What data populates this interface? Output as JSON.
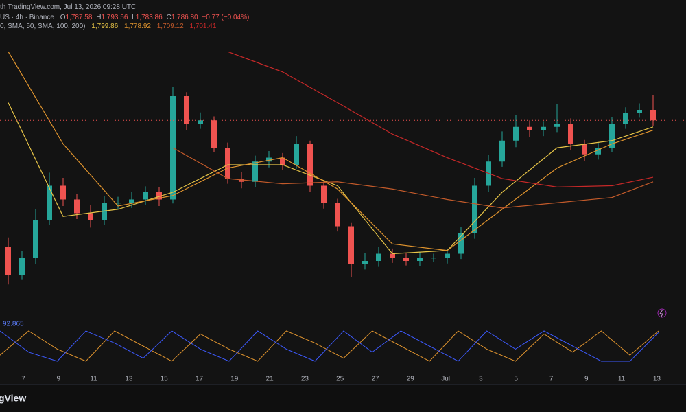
{
  "chart_data": {
    "type": "candlestick",
    "header": {
      "source": "th TradingView.com, Jul 13, 2026 09:28 UTC",
      "symbol": "US · 4h · Binance",
      "o_label": "O",
      "o": "1,787.58",
      "h_label": "H",
      "h": "1,793.56",
      "l_label": "L",
      "l": "1,783.86",
      "c_label": "C",
      "c": "1,786.80",
      "change": "−0.77 (−0.04%)",
      "ma_legend": "0, SMA, 50, SMA, 100, 200)",
      "ma_values": [
        "1,799.86",
        "1,778.92",
        "1,709.12",
        "1,701.41"
      ]
    },
    "logo": "gView",
    "up_color": "#26a69a",
    "down_color": "#ef5350",
    "ylim": [
      1494,
      1977
    ],
    "open": [
      1600,
      1557,
      1583,
      1641,
      1693,
      1672,
      1651,
      1641,
      1667,
      1667,
      1672,
      1683,
      1672,
      1830,
      1788,
      1793,
      1751,
      1704,
      1699,
      1730,
      1736,
      1725,
      1757,
      1693,
      1667,
      1631,
      1573,
      1578,
      1589,
      1583,
      1578,
      1583,
      1583,
      1589,
      1620,
      1693,
      1730,
      1762,
      1783,
      1778,
      1783,
      1788,
      1757,
      1741,
      1751,
      1788,
      1804,
      1809
    ],
    "high": [
      1614,
      1593,
      1657,
      1713,
      1705,
      1680,
      1663,
      1677,
      1676,
      1683,
      1692,
      1691,
      1844,
      1836,
      1805,
      1799,
      1759,
      1714,
      1739,
      1746,
      1743,
      1769,
      1762,
      1701,
      1673,
      1636,
      1590,
      1599,
      1597,
      1590,
      1592,
      1589,
      1597,
      1630,
      1705,
      1740,
      1776,
      1801,
      1793,
      1792,
      1818,
      1796,
      1763,
      1759,
      1798,
      1813,
      1819,
      1831
    ],
    "low": [
      1542,
      1549,
      1573,
      1633,
      1662,
      1642,
      1629,
      1633,
      1657,
      1659,
      1663,
      1662,
      1666,
      1778,
      1780,
      1745,
      1696,
      1689,
      1691,
      1721,
      1717,
      1719,
      1683,
      1658,
      1623,
      1553,
      1565,
      1569,
      1575,
      1571,
      1570,
      1576,
      1574,
      1581,
      1612,
      1683,
      1722,
      1752,
      1768,
      1769,
      1775,
      1748,
      1731,
      1733,
      1744,
      1780,
      1797,
      1785
    ],
    "close": [
      1557,
      1583,
      1641,
      1693,
      1672,
      1651,
      1641,
      1667,
      1667,
      1672,
      1683,
      1672,
      1830,
      1788,
      1793,
      1751,
      1704,
      1699,
      1730,
      1736,
      1725,
      1757,
      1693,
      1667,
      1631,
      1573,
      1578,
      1589,
      1583,
      1578,
      1583,
      1583,
      1589,
      1620,
      1693,
      1730,
      1762,
      1783,
      1778,
      1783,
      1788,
      1757,
      1741,
      1751,
      1788,
      1804,
      1809,
      1793
    ],
    "ma_x": [
      0,
      4,
      8,
      12,
      16,
      20,
      24,
      28,
      32,
      36,
      40,
      44,
      47
    ],
    "series": [
      {
        "color": "#e8c547",
        "values": [
          1820,
          1646,
          1657,
          1683,
          1725,
          1725,
          1693,
          1589,
          1594,
          1683,
          1751,
          1762,
          1783
        ]
      },
      {
        "color": "#e0942e",
        "values": [
          1898,
          1757,
          1662,
          1678,
          1720,
          1736,
          1688,
          1604,
          1594,
          1657,
          1720,
          1757,
          1778
        ]
      },
      {
        "color": "#c25a2a",
        "values": [
          null,
          null,
          null,
          1751,
          1704,
          1696,
          1699,
          1688,
          1672,
          1659,
          1667,
          1675,
          1699
        ]
      },
      {
        "color": "#c62828",
        "values": [
          null,
          null,
          null,
          null,
          1898,
          1867,
          1820,
          1772,
          1736,
          1704,
          1691,
          1693,
          1706
        ]
      }
    ],
    "oscillator": {
      "label": "92.865",
      "ylim": [
        0,
        100
      ],
      "series": [
        {
          "color": "#e0942e",
          "values": [
            20,
            100,
            40,
            0,
            100,
            50,
            0,
            90,
            40,
            0,
            100,
            60,
            10,
            100,
            50,
            0,
            100,
            40,
            0,
            90,
            30,
            100,
            20,
            100
          ]
        },
        {
          "color": "#3d5afe",
          "values": [
            100,
            30,
            0,
            100,
            60,
            10,
            100,
            40,
            0,
            100,
            40,
            0,
            100,
            30,
            100,
            50,
            0,
            100,
            40,
            100,
            50,
            0,
            0,
            95
          ]
        }
      ]
    },
    "xtick_labels": [
      "7",
      "9",
      "11",
      "13",
      "15",
      "17",
      "19",
      "21",
      "23",
      "25",
      "27",
      "29",
      "Jul",
      "3",
      "5",
      "7",
      "9",
      "11",
      "13"
    ]
  }
}
